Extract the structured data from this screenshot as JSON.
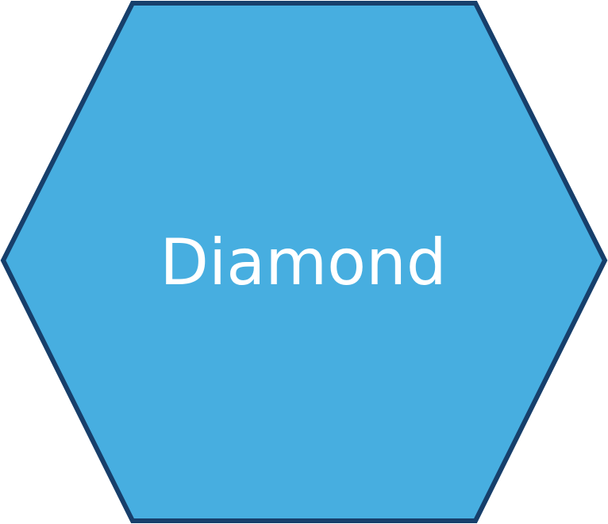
{
  "shape": {
    "kind": "hexagon",
    "label": "Diamond",
    "fill_color": "#47AEE0",
    "stroke_color": "#173F6B",
    "label_color": "#FFFFFF"
  }
}
